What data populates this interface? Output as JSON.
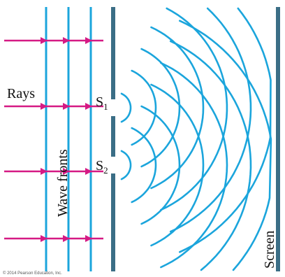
{
  "labels": {
    "rays": "Rays",
    "wave_fronts": "Wave fronts",
    "slit1_main": "S",
    "slit1_sub": "1",
    "slit2_main": "S",
    "slit2_sub": "2",
    "screen": "Screen",
    "copyright": "© 2014 Pearson Education, Inc."
  },
  "colors": {
    "wave": "#1ba5dc",
    "ray": "#d51a84",
    "barrier": "#3b6e86",
    "screen": "#3b6e86",
    "text": "#111111"
  }
}
